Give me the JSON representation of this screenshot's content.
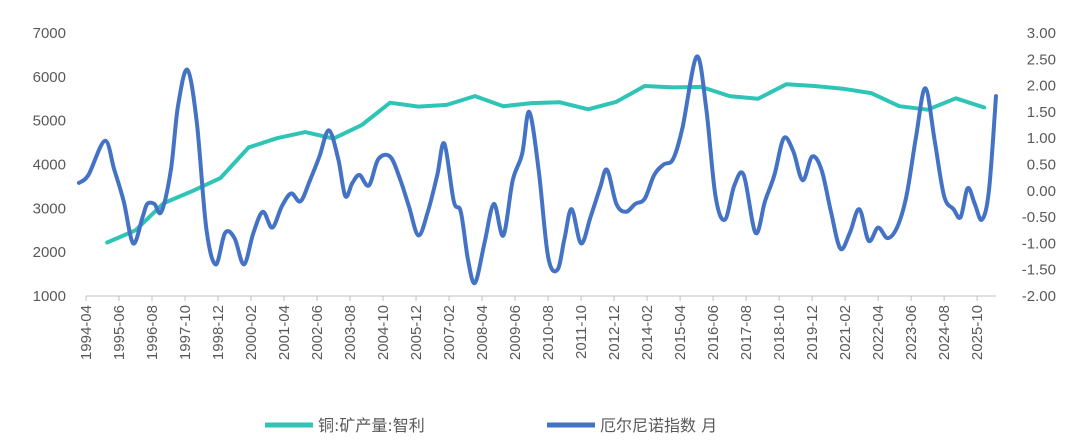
{
  "chart_data": {
    "type": "line",
    "x_ticks": [
      "1994-04",
      "1995-06",
      "1996-08",
      "1997-10",
      "1998-12",
      "2000-02",
      "2001-04",
      "2002-06",
      "2003-08",
      "2004-10",
      "2005-12",
      "2007-02",
      "2008-04",
      "2009-06",
      "2010-08",
      "2011-10",
      "2012-12",
      "2014-02",
      "2015-04",
      "2016-06",
      "2017-08",
      "2018-10",
      "2019-12",
      "2021-02",
      "2022-04",
      "2023-06",
      "2024-08",
      "2025-10"
    ],
    "y_left": {
      "ticks": [
        "7000",
        "6000",
        "5000",
        "4000",
        "3000",
        "2000",
        "1000"
      ],
      "min": 1000,
      "max": 7000
    },
    "y_right": {
      "ticks": [
        "3.00",
        "2.50",
        "2.00",
        "1.50",
        "1.00",
        "0.50",
        "0.00",
        "-0.50",
        "-1.00",
        "-1.50",
        "-2.00"
      ],
      "min": -2.0,
      "max": 3.0
    },
    "grid": false,
    "legend_position": "bottom",
    "series": [
      {
        "name": "铜:矿产量:智利",
        "axis": "left",
        "color": "#2EC4B6",
        "points": [
          [
            "1995-01",
            2220
          ],
          [
            "1996-01",
            2500
          ],
          [
            "1997-01",
            3120
          ],
          [
            "1998-01",
            3390
          ],
          [
            "1999-01",
            3690
          ],
          [
            "2000-01",
            4390
          ],
          [
            "2001-01",
            4600
          ],
          [
            "2002-01",
            4740
          ],
          [
            "2003-01",
            4590
          ],
          [
            "2004-01",
            4900
          ],
          [
            "2005-01",
            5410
          ],
          [
            "2006-01",
            5320
          ],
          [
            "2007-01",
            5360
          ],
          [
            "2008-01",
            5560
          ],
          [
            "2009-01",
            5330
          ],
          [
            "2010-01",
            5400
          ],
          [
            "2011-01",
            5420
          ],
          [
            "2012-01",
            5260
          ],
          [
            "2013-01",
            5430
          ],
          [
            "2014-01",
            5790
          ],
          [
            "2015-01",
            5760
          ],
          [
            "2016-01",
            5770
          ],
          [
            "2017-01",
            5560
          ],
          [
            "2018-01",
            5500
          ],
          [
            "2019-01",
            5830
          ],
          [
            "2020-01",
            5790
          ],
          [
            "2021-01",
            5730
          ],
          [
            "2022-01",
            5630
          ],
          [
            "2023-01",
            5330
          ],
          [
            "2024-01",
            5250
          ],
          [
            "2025-01",
            5510
          ],
          [
            "2026-01",
            5300
          ]
        ]
      },
      {
        "name": "厄尔尼诺指数 月",
        "axis": "right",
        "color": "#4472C4",
        "points": [
          [
            "1994-01",
            0.15
          ],
          [
            "1994-05",
            0.3
          ],
          [
            "1994-12",
            0.95
          ],
          [
            "1995-04",
            0.4
          ],
          [
            "1995-08",
            -0.2
          ],
          [
            "1995-12",
            -1.0
          ],
          [
            "1996-04",
            -0.5
          ],
          [
            "1996-06",
            -0.25
          ],
          [
            "1996-09",
            -0.25
          ],
          [
            "1996-12",
            -0.4
          ],
          [
            "1997-04",
            0.4
          ],
          [
            "1997-07",
            1.6
          ],
          [
            "1997-11",
            2.3
          ],
          [
            "1998-03",
            1.3
          ],
          [
            "1998-07",
            -0.7
          ],
          [
            "1998-11",
            -1.4
          ],
          [
            "1999-03",
            -0.8
          ],
          [
            "1999-07",
            -0.9
          ],
          [
            "1999-11",
            -1.4
          ],
          [
            "2000-03",
            -0.8
          ],
          [
            "2000-07",
            -0.4
          ],
          [
            "2000-11",
            -0.7
          ],
          [
            "2001-03",
            -0.3
          ],
          [
            "2001-07",
            -0.05
          ],
          [
            "2001-11",
            -0.2
          ],
          [
            "2002-03",
            0.2
          ],
          [
            "2002-07",
            0.65
          ],
          [
            "2002-11",
            1.15
          ],
          [
            "2003-03",
            0.6
          ],
          [
            "2003-06",
            -0.1
          ],
          [
            "2003-09",
            0.15
          ],
          [
            "2003-12",
            0.3
          ],
          [
            "2004-04",
            0.1
          ],
          [
            "2004-08",
            0.6
          ],
          [
            "2005-01",
            0.65
          ],
          [
            "2005-05",
            0.25
          ],
          [
            "2005-09",
            -0.3
          ],
          [
            "2006-01",
            -0.85
          ],
          [
            "2006-05",
            -0.4
          ],
          [
            "2006-09",
            0.3
          ],
          [
            "2006-12",
            0.9
          ],
          [
            "2007-04",
            -0.2
          ],
          [
            "2007-07",
            -0.4
          ],
          [
            "2007-10",
            -1.3
          ],
          [
            "2008-01",
            -1.75
          ],
          [
            "2008-05",
            -1.0
          ],
          [
            "2008-09",
            -0.25
          ],
          [
            "2009-01",
            -0.85
          ],
          [
            "2009-05",
            0.2
          ],
          [
            "2009-09",
            0.7
          ],
          [
            "2009-12",
            1.5
          ],
          [
            "2010-04",
            0.4
          ],
          [
            "2010-08",
            -1.25
          ],
          [
            "2010-12",
            -1.5
          ],
          [
            "2011-03",
            -0.9
          ],
          [
            "2011-06",
            -0.35
          ],
          [
            "2011-10",
            -1.0
          ],
          [
            "2012-02",
            -0.5
          ],
          [
            "2012-06",
            0.05
          ],
          [
            "2012-09",
            0.4
          ],
          [
            "2013-01",
            -0.25
          ],
          [
            "2013-05",
            -0.4
          ],
          [
            "2013-09",
            -0.25
          ],
          [
            "2014-01",
            -0.15
          ],
          [
            "2014-05",
            0.3
          ],
          [
            "2014-09",
            0.5
          ],
          [
            "2015-01",
            0.6
          ],
          [
            "2015-05",
            1.2
          ],
          [
            "2015-11",
            2.55
          ],
          [
            "2016-03",
            1.6
          ],
          [
            "2016-07",
            -0.1
          ],
          [
            "2016-11",
            -0.55
          ],
          [
            "2017-03",
            0.1
          ],
          [
            "2017-07",
            0.3
          ],
          [
            "2017-12",
            -0.8
          ],
          [
            "2018-04",
            -0.2
          ],
          [
            "2018-08",
            0.3
          ],
          [
            "2018-12",
            1.0
          ],
          [
            "2019-04",
            0.75
          ],
          [
            "2019-08",
            0.2
          ],
          [
            "2019-12",
            0.65
          ],
          [
            "2020-04",
            0.4
          ],
          [
            "2020-08",
            -0.4
          ],
          [
            "2020-12",
            -1.1
          ],
          [
            "2021-04",
            -0.8
          ],
          [
            "2021-08",
            -0.35
          ],
          [
            "2021-12",
            -0.95
          ],
          [
            "2022-04",
            -0.7
          ],
          [
            "2022-08",
            -0.9
          ],
          [
            "2022-12",
            -0.7
          ],
          [
            "2023-04",
            -0.1
          ],
          [
            "2023-08",
            1.0
          ],
          [
            "2023-12",
            1.95
          ],
          [
            "2024-04",
            0.95
          ],
          [
            "2024-08",
            -0.1
          ],
          [
            "2024-12",
            -0.35
          ],
          [
            "2025-03",
            -0.5
          ],
          [
            "2025-06",
            0.05
          ],
          [
            "2025-09",
            -0.25
          ],
          [
            "2025-12",
            -0.55
          ],
          [
            "2026-03",
            0.0
          ],
          [
            "2026-06",
            1.8
          ]
        ]
      }
    ]
  }
}
